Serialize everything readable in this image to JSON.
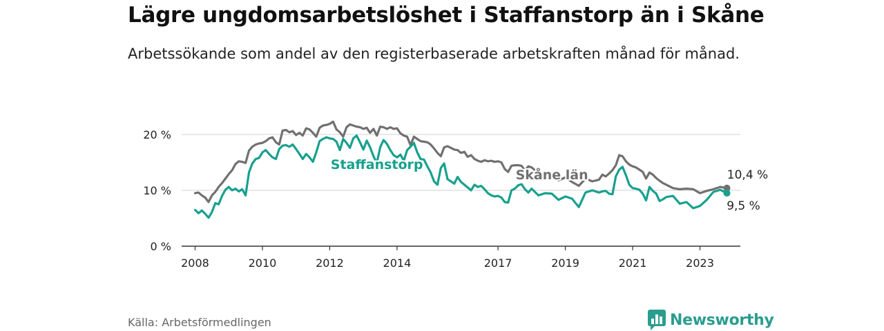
{
  "title": "Lägre ungdomsarbetslöshet i Staffanstorp än i Skåne",
  "subtitle": "Arbetssökande som andel av den registerbaserade arbetskraften månad för månad.",
  "source": "Källa: Arbetsförmedlingen",
  "brand": "Newsworthy",
  "colors": {
    "skane": "#707070",
    "staffanstorp": "#17a08e",
    "brand": "#2a9d8f"
  },
  "chart_data": {
    "type": "line",
    "title": "Lägre ungdomsarbetslöshet i Staffanstorp än i Skåne",
    "xlabel": "",
    "ylabel": "",
    "xlim": [
      2007.6,
      2024.2
    ],
    "ylim": [
      0,
      20
    ],
    "y_ticks": [
      0,
      10,
      20
    ],
    "y_tick_labels": [
      "0 %",
      "10 %",
      "20 %"
    ],
    "x_ticks": [
      2008,
      2010,
      2012,
      2014,
      2017,
      2019,
      2021,
      2023
    ],
    "x_tick_labels": [
      "2008",
      "2010",
      "2012",
      "2014",
      "2017",
      "2019",
      "2021",
      "2023"
    ],
    "series": [
      {
        "name": "Skåne län",
        "label": "Skåne län",
        "end_label": "10,4 %",
        "color": "#707070",
        "x": [
          2008.0,
          2008.1,
          2008.2,
          2008.3,
          2008.4,
          2008.5,
          2008.6,
          2008.7,
          2008.8,
          2008.9,
          2009.0,
          2009.1,
          2009.2,
          2009.3,
          2009.4,
          2009.5,
          2009.6,
          2009.7,
          2009.8,
          2009.9,
          2010.0,
          2010.1,
          2010.2,
          2010.3,
          2010.4,
          2010.5,
          2010.6,
          2010.7,
          2010.8,
          2010.9,
          2011.0,
          2011.1,
          2011.2,
          2011.3,
          2011.4,
          2011.5,
          2011.6,
          2011.7,
          2011.8,
          2011.9,
          2012.0,
          2012.1,
          2012.2,
          2012.3,
          2012.4,
          2012.5,
          2012.6,
          2012.7,
          2012.8,
          2012.9,
          2013.0,
          2013.1,
          2013.2,
          2013.3,
          2013.4,
          2013.5,
          2013.6,
          2013.7,
          2013.8,
          2013.9,
          2014.0,
          2014.1,
          2014.2,
          2014.3,
          2014.4,
          2014.5,
          2014.6,
          2014.7,
          2014.8,
          2014.9,
          2015.0,
          2015.1,
          2015.2,
          2015.3,
          2015.4,
          2015.5,
          2015.6,
          2015.7,
          2015.8,
          2015.9,
          2016.0,
          2016.1,
          2016.2,
          2016.3,
          2016.4,
          2016.5,
          2016.6,
          2016.7,
          2016.8,
          2016.9,
          2017.0,
          2017.1,
          2017.2,
          2017.3,
          2017.4,
          2017.5,
          2017.6,
          2017.7,
          2017.8,
          2017.9,
          2018.0,
          2018.2,
          2018.4,
          2018.6,
          2018.8,
          2019.0,
          2019.2,
          2019.4,
          2019.6,
          2019.8,
          2020.0,
          2020.1,
          2020.2,
          2020.3,
          2020.4,
          2020.5,
          2020.6,
          2020.7,
          2020.8,
          2020.9,
          2021.0,
          2021.1,
          2021.2,
          2021.3,
          2021.4,
          2021.5,
          2021.6,
          2021.7,
          2021.8,
          2021.9,
          2022.0,
          2022.2,
          2022.4,
          2022.6,
          2022.8,
          2023.0,
          2023.2,
          2023.4,
          2023.6,
          2023.8
        ],
        "values": [
          9.5,
          9.6,
          9.1,
          8.7,
          7.9,
          9.1,
          9.7,
          10.6,
          11.3,
          12.1,
          12.9,
          13.6,
          14.7,
          15.2,
          15.1,
          14.9,
          17.1,
          17.8,
          18.2,
          18.4,
          18.5,
          18.8,
          19.3,
          19.5,
          18.6,
          18.2,
          20.7,
          20.8,
          20.4,
          20.6,
          19.9,
          20.3,
          19.8,
          21.1,
          20.9,
          20.3,
          19.6,
          21.2,
          21.6,
          21.7,
          21.9,
          22.3,
          20.9,
          20.4,
          19.6,
          21.3,
          21.8,
          21.6,
          21.4,
          21.3,
          21.0,
          21.2,
          20.3,
          21.0,
          19.8,
          21.4,
          21.3,
          21.0,
          21.3,
          21.0,
          21.1,
          20.2,
          19.8,
          19.6,
          18.1,
          19.6,
          19.2,
          18.8,
          18.7,
          18.6,
          18.2,
          17.5,
          16.7,
          16.1,
          17.7,
          17.9,
          17.6,
          17.3,
          17.2,
          16.7,
          16.9,
          16.0,
          16.3,
          15.6,
          15.3,
          15.1,
          15.4,
          15.2,
          15.3,
          15.1,
          15.2,
          15.0,
          13.8,
          13.3,
          14.4,
          14.5,
          14.5,
          14.4,
          13.5,
          14.3,
          14.1,
          13.1,
          12.6,
          12.4,
          11.8,
          12.3,
          11.5,
          10.8,
          12.1,
          11.6,
          11.9,
          12.8,
          12.5,
          13.0,
          13.6,
          14.5,
          16.3,
          16.1,
          15.2,
          14.6,
          14.3,
          14.1,
          13.7,
          13.3,
          12.1,
          13.2,
          12.8,
          12.2,
          11.7,
          11.3,
          11.0,
          10.4,
          10.2,
          10.3,
          10.2,
          9.5,
          9.9,
          10.2,
          10.6,
          10.4
        ]
      },
      {
        "name": "Staffanstorp",
        "label": "Staffanstorp",
        "end_label": "9,5 %",
        "color": "#17a08e",
        "x": [
          2008.0,
          2008.1,
          2008.2,
          2008.3,
          2008.4,
          2008.5,
          2008.6,
          2008.7,
          2008.8,
          2008.9,
          2009.0,
          2009.1,
          2009.2,
          2009.3,
          2009.4,
          2009.5,
          2009.6,
          2009.7,
          2009.8,
          2009.9,
          2010.0,
          2010.1,
          2010.2,
          2010.3,
          2010.4,
          2010.5,
          2010.6,
          2010.7,
          2010.8,
          2010.9,
          2011.0,
          2011.1,
          2011.2,
          2011.3,
          2011.4,
          2011.5,
          2011.6,
          2011.7,
          2011.8,
          2011.9,
          2012.0,
          2012.1,
          2012.2,
          2012.3,
          2012.4,
          2012.5,
          2012.6,
          2012.7,
          2012.8,
          2012.9,
          2013.0,
          2013.1,
          2013.2,
          2013.3,
          2013.4,
          2013.5,
          2013.6,
          2013.7,
          2013.8,
          2013.9,
          2014.0,
          2014.1,
          2014.2,
          2014.3,
          2014.4,
          2014.5,
          2014.6,
          2014.7,
          2014.8,
          2014.9,
          2015.0,
          2015.1,
          2015.2,
          2015.3,
          2015.4,
          2015.5,
          2015.6,
          2015.7,
          2015.8,
          2015.9,
          2016.0,
          2016.1,
          2016.2,
          2016.3,
          2016.4,
          2016.5,
          2016.6,
          2016.7,
          2016.8,
          2016.9,
          2017.0,
          2017.1,
          2017.2,
          2017.3,
          2017.4,
          2017.5,
          2017.6,
          2017.7,
          2017.8,
          2017.9,
          2018.0,
          2018.2,
          2018.4,
          2018.6,
          2018.8,
          2019.0,
          2019.2,
          2019.4,
          2019.6,
          2019.8,
          2020.0,
          2020.1,
          2020.2,
          2020.3,
          2020.4,
          2020.5,
          2020.6,
          2020.7,
          2020.8,
          2020.9,
          2021.0,
          2021.1,
          2021.2,
          2021.3,
          2021.4,
          2021.5,
          2021.6,
          2021.7,
          2021.8,
          2021.9,
          2022.0,
          2022.2,
          2022.4,
          2022.6,
          2022.8,
          2023.0,
          2023.2,
          2023.4,
          2023.6,
          2023.8
        ],
        "values": [
          6.5,
          5.9,
          6.4,
          5.8,
          5.1,
          6.1,
          7.7,
          7.5,
          9.0,
          10.1,
          10.6,
          10.0,
          10.3,
          9.8,
          10.2,
          9.1,
          13.2,
          14.8,
          15.6,
          15.8,
          16.8,
          17.2,
          16.5,
          15.9,
          15.6,
          17.4,
          18.0,
          18.1,
          17.8,
          18.2,
          17.4,
          16.5,
          15.6,
          16.5,
          15.9,
          15.1,
          16.8,
          18.8,
          19.2,
          19.5,
          19.3,
          19.2,
          18.7,
          17.2,
          19.2,
          18.5,
          17.6,
          19.3,
          19.8,
          18.6,
          17.3,
          18.9,
          17.7,
          16.1,
          14.9,
          17.7,
          19.0,
          18.3,
          17.2,
          16.3,
          15.9,
          16.4,
          15.3,
          17.2,
          17.8,
          18.5,
          16.8,
          15.6,
          15.5,
          14.3,
          13.2,
          11.6,
          11.0,
          14.0,
          14.8,
          12.0,
          11.6,
          11.2,
          12.4,
          11.5,
          11.0,
          10.5,
          10.0,
          11.0,
          10.6,
          10.8,
          10.2,
          9.5,
          9.1,
          8.9,
          9.0,
          8.7,
          7.9,
          7.8,
          10.0,
          10.3,
          10.9,
          11.1,
          10.2,
          9.6,
          10.3,
          9.1,
          9.5,
          9.4,
          8.3,
          8.9,
          8.5,
          7.0,
          9.6,
          10.0,
          9.6,
          9.8,
          9.9,
          9.4,
          9.3,
          12.5,
          13.7,
          14.2,
          12.7,
          11.0,
          10.4,
          10.3,
          10.1,
          9.4,
          8.2,
          10.6,
          9.9,
          9.4,
          8.1,
          8.4,
          8.8,
          9.0,
          7.6,
          7.9,
          6.8,
          7.2,
          8.3,
          9.7,
          10.1,
          9.5
        ]
      }
    ]
  }
}
